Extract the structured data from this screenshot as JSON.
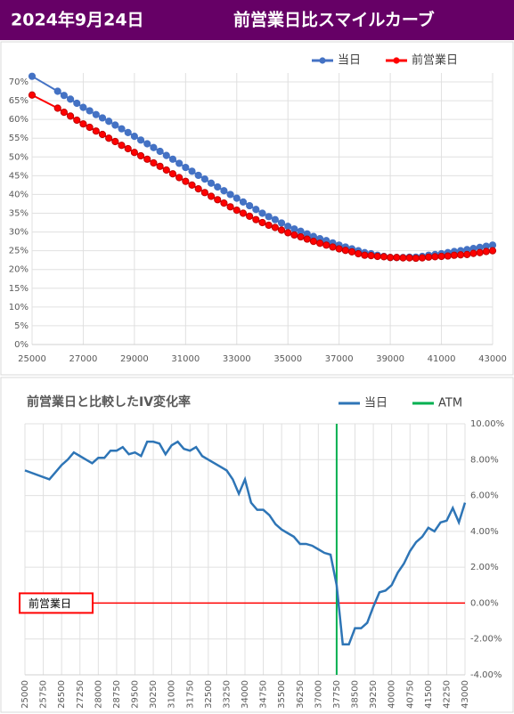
{
  "header": {
    "date": "2024年9月24日",
    "title": "前営業日比スマイルカーブ"
  },
  "chart_data": [
    {
      "type": "line",
      "markers": true,
      "legend": "top-right",
      "grid": true,
      "x": [
        25000,
        26000,
        26250,
        26500,
        26750,
        27000,
        27250,
        27500,
        27750,
        28000,
        28250,
        28500,
        28750,
        29000,
        29250,
        29500,
        29750,
        30000,
        30250,
        30500,
        30750,
        31000,
        31250,
        31500,
        31750,
        32000,
        32250,
        32500,
        32750,
        33000,
        33250,
        33500,
        33750,
        34000,
        34250,
        34500,
        34750,
        35000,
        35250,
        35500,
        35750,
        36000,
        36250,
        36500,
        36750,
        37000,
        37250,
        37500,
        37750,
        38000,
        38250,
        38500,
        38750,
        39000,
        39250,
        39500,
        39750,
        40000,
        40250,
        40500,
        40750,
        41000,
        41250,
        41500,
        41750,
        42000,
        42250,
        42500,
        42750,
        43000
      ],
      "series": [
        {
          "name": "当日",
          "color": "#4472c4",
          "values": [
            71.5,
            67.5,
            66.4,
            65.4,
            64.3,
            63.2,
            62.3,
            61.3,
            60.4,
            59.5,
            58.5,
            57.5,
            56.5,
            55.5,
            54.5,
            53.5,
            52.5,
            51.5,
            50.4,
            49.4,
            48.3,
            47.2,
            46.2,
            45.1,
            44.1,
            43.0,
            42,
            41,
            40,
            39,
            38,
            37,
            36,
            35,
            34.1,
            33.3,
            32.4,
            31.5,
            30.8,
            30.2,
            29.5,
            28.8,
            28.2,
            27.7,
            27.1,
            26.5,
            26,
            25.5,
            25,
            24.5,
            24.2,
            23.8,
            23.5,
            23.2,
            23.2,
            23.2,
            23.3,
            23.3,
            23.5,
            23.8,
            24.0,
            24.2,
            24.5,
            24.8,
            25.0,
            25.3,
            25.6,
            25.9,
            26.2,
            26.5
          ]
        },
        {
          "name": "前営業日",
          "color": "#ff0000",
          "values": [
            66.5,
            63,
            61.9,
            60.9,
            59.8,
            58.8,
            57.9,
            56.9,
            56.0,
            55.0,
            54.1,
            53.1,
            52.2,
            51.2,
            50.3,
            49.4,
            48.4,
            47.5,
            46.5,
            45.5,
            44.5,
            43.5,
            42.5,
            41.5,
            40.5,
            39.5,
            38.6,
            37.7,
            36.7,
            35.8,
            35.0,
            34.2,
            33.3,
            32.5,
            31.8,
            31.2,
            30.5,
            29.8,
            29.2,
            28.7,
            28.1,
            27.5,
            27.0,
            26.5,
            26.0,
            25.5,
            25.1,
            24.7,
            24.2,
            23.8,
            23.7,
            23.5,
            23.4,
            23.2,
            23.2,
            23.1,
            23.1,
            23.0,
            23.1,
            23.3,
            23.4,
            23.5,
            23.6,
            23.8,
            23.9,
            24.0,
            24.3,
            24.5,
            24.8,
            25.0
          ]
        }
      ],
      "xlim": [
        25000,
        43000
      ],
      "xticks": [
        25000,
        27000,
        29000,
        31000,
        33000,
        35000,
        37000,
        39000,
        41000,
        43000
      ],
      "ylim": [
        0,
        70
      ],
      "yticks": [
        {
          "value": 0,
          "label": "0%"
        },
        {
          "value": 5,
          "label": "5%"
        },
        {
          "value": 10,
          "label": "10%"
        },
        {
          "value": 15,
          "label": "15%"
        },
        {
          "value": 20,
          "label": "20%"
        },
        {
          "value": 25,
          "label": "25%"
        },
        {
          "value": 30,
          "label": "30%"
        },
        {
          "value": 35,
          "label": "35%"
        },
        {
          "value": 40,
          "label": "40%"
        },
        {
          "value": 45,
          "label": "45%"
        },
        {
          "value": 50,
          "label": "50%"
        },
        {
          "value": 55,
          "label": "55%"
        },
        {
          "value": 60,
          "label": "60%"
        },
        {
          "value": 65,
          "label": "65%"
        },
        {
          "value": 70,
          "label": "70%"
        }
      ]
    },
    {
      "type": "line",
      "markers": false,
      "legend": "top-right",
      "grid": true,
      "yaxis_side": "right",
      "title": "前営業日と比較したIV変化率",
      "x": [
        25000,
        26000,
        26250,
        26500,
        26750,
        27000,
        27250,
        27500,
        27750,
        28000,
        28250,
        28500,
        28750,
        29000,
        29250,
        29500,
        29750,
        30000,
        30250,
        30500,
        30750,
        31000,
        31250,
        31500,
        31750,
        32000,
        32250,
        32500,
        32750,
        33000,
        33250,
        33500,
        33750,
        34000,
        34250,
        34500,
        34750,
        35000,
        35250,
        35500,
        35750,
        36000,
        36250,
        36500,
        36750,
        37000,
        37250,
        37500,
        37750,
        38000,
        38250,
        38500,
        38750,
        39000,
        39250,
        39500,
        39750,
        40000,
        40250,
        40500,
        40750,
        41000,
        41250,
        41500,
        41750,
        42000,
        42250,
        42500,
        42750,
        43000
      ],
      "series": [
        {
          "name": "当日",
          "color": "#2e75b6",
          "values": [
            7.4,
            6.9,
            7.3,
            7.7,
            8.0,
            8.4,
            8.2,
            8.0,
            7.8,
            8.1,
            8.1,
            8.5,
            8.5,
            8.7,
            8.3,
            8.4,
            8.2,
            9.0,
            9.0,
            8.9,
            8.3,
            8.8,
            9.0,
            8.6,
            8.5,
            8.7,
            8.2,
            8.0,
            7.8,
            7.6,
            7.4,
            6.9,
            6.1,
            6.9,
            5.6,
            5.2,
            5.2,
            4.9,
            4.4,
            4.1,
            3.9,
            3.7,
            3.3,
            3.3,
            3.2,
            3.0,
            2.8,
            2.7,
            1.0,
            -2.3,
            -2.3,
            -1.4,
            -1.4,
            -1.1,
            -0.2,
            0.6,
            0.7,
            1.0,
            1.7,
            2.2,
            2.9,
            3.4,
            3.7,
            4.2,
            4.0,
            4.5,
            4.6,
            5.3,
            4.5,
            5.6
          ]
        }
      ],
      "vlines": [
        {
          "name": "ATM",
          "color": "#00b050",
          "x": 37750
        }
      ],
      "hlines": [
        {
          "label": "前営業日",
          "color": "#ff0000",
          "y": 0
        }
      ],
      "xlim": [
        25000,
        43000
      ],
      "xticks": [
        25000,
        25750,
        26500,
        27250,
        28000,
        28750,
        29500,
        30250,
        31000,
        31750,
        32500,
        33250,
        34000,
        34750,
        35500,
        36250,
        37000,
        37750,
        38500,
        39250,
        40000,
        40750,
        41500,
        42250,
        43000
      ],
      "ylim": [
        -4,
        10
      ],
      "yticks": [
        {
          "value": -4,
          "label": "-4.00%"
        },
        {
          "value": -2,
          "label": "-2.00%"
        },
        {
          "value": 0,
          "label": "0.00%"
        },
        {
          "value": 2,
          "label": "2.00%"
        },
        {
          "value": 4,
          "label": "4.00%"
        },
        {
          "value": 6,
          "label": "6.00%"
        },
        {
          "value": 8,
          "label": "8.00%"
        },
        {
          "value": 10,
          "label": "10.00%"
        }
      ]
    }
  ]
}
